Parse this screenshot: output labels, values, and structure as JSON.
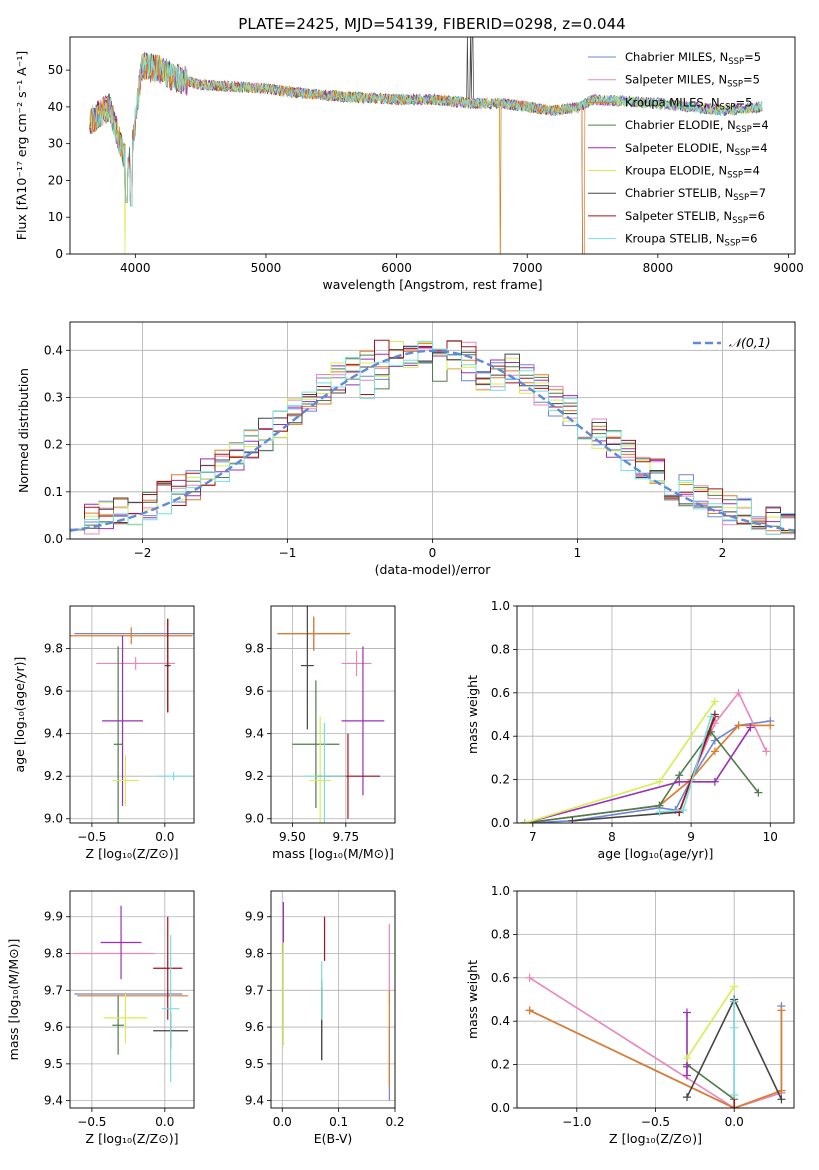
{
  "figure": {
    "title": "PLATE=2425, MJD=54139, FIBERID=0298, z=0.044"
  },
  "models": [
    {
      "name": "Chabrier MILES",
      "nssp": "5",
      "color": "#6f86d6"
    },
    {
      "name": "Salpeter MILES",
      "nssp": "5",
      "color": "#e887bd"
    },
    {
      "name": "Kroupa MILES",
      "nssp": "5",
      "color": "#e07b28"
    },
    {
      "name": "Chabrier ELODIE",
      "nssp": "4",
      "color": "#4f7d4a"
    },
    {
      "name": "Salpeter ELODIE",
      "nssp": "4",
      "color": "#9a2fb8"
    },
    {
      "name": "Kroupa ELODIE",
      "nssp": "4",
      "color": "#d7ee50"
    },
    {
      "name": "Chabrier STELIB",
      "nssp": "7",
      "color": "#444444"
    },
    {
      "name": "Salpeter STELIB",
      "nssp": "6",
      "color": "#a3131b"
    },
    {
      "name": "Kroupa STELIB",
      "nssp": "6",
      "color": "#79dede"
    }
  ],
  "chart_data": [
    {
      "id": "spectrum",
      "type": "line",
      "xlabel": "wavelength [Angstrom, rest frame]",
      "ylabel": "Flux [fλ10⁻¹⁷ erg cm⁻² s⁻¹ A⁻¹]",
      "xlim": [
        3500,
        9050
      ],
      "ylim": [
        0,
        59
      ],
      "xticks": [
        4000,
        5000,
        6000,
        7000,
        8000,
        9000
      ],
      "yticks": [
        0,
        10,
        20,
        30,
        40,
        50
      ],
      "legend": "upper right",
      "grid": false,
      "series_profile": {
        "wavelength": [
          3650,
          3800,
          3930,
          3970,
          4050,
          4200,
          4300,
          4500,
          5000,
          5200,
          5500,
          6000,
          6300,
          6560,
          6800,
          7000,
          7200,
          7400,
          7500,
          8000,
          8500,
          8800
        ],
        "flux": [
          36,
          40,
          25,
          28,
          51,
          50,
          48,
          46,
          45,
          44,
          43,
          42,
          42,
          41,
          41,
          40,
          39,
          40,
          42,
          41,
          39,
          40
        ]
      },
      "salpeter_stelib_drop_at": 7420
    },
    {
      "id": "residuals",
      "type": "histogram",
      "xlabel": "(data-model)/error",
      "ylabel": "Normed distribution",
      "xlim": [
        -2.5,
        2.5
      ],
      "ylim": [
        0,
        0.46
      ],
      "xticks": [
        -2,
        -1,
        0,
        1,
        2
      ],
      "yticks": [
        0.0,
        0.1,
        0.2,
        0.3,
        0.4
      ],
      "grid": true,
      "legend": "upper right",
      "reference_label": "𝒩(0,1)",
      "reference_color": "#5f8ad8",
      "bin_width": 0.1
    },
    {
      "id": "age-vs-Z",
      "type": "errorbar",
      "xlabel": "Z [log₁₀(Z/Z⊙)]",
      "ylabel": "age  [log₁₀(age/yr)]",
      "xlim": [
        -0.65,
        0.2
      ],
      "ylim": [
        8.98,
        10.0
      ],
      "xticks": [
        -0.5,
        0.0
      ],
      "yticks": [
        9.0,
        9.2,
        9.4,
        9.6,
        9.8
      ],
      "grid": true,
      "points": [
        {
          "x": -0.2,
          "xerr": 0.42,
          "y": 9.87,
          "yerr": 0.0
        },
        {
          "x": -0.2,
          "xerr": 0.27,
          "y": 9.73,
          "yerr": 0.03
        },
        {
          "x": -0.23,
          "xerr": 0.42,
          "y": 9.86,
          "yerr": 0.04
        },
        {
          "x": -0.32,
          "xerr": 0.03,
          "y": 9.35,
          "yerr": 0.46
        },
        {
          "x": -0.29,
          "xerr": 0.14,
          "y": 9.46,
          "yerr": 0.4
        },
        {
          "x": -0.27,
          "xerr": 0.09,
          "y": 9.18,
          "yerr": 0.12
        },
        {
          "x": 0.02,
          "xerr": 0.02,
          "y": 9.72,
          "yerr": 0.22
        },
        {
          "x": 0.02,
          "xerr": 0.01,
          "y": 9.72,
          "yerr": 0.22
        },
        {
          "x": 0.06,
          "xerr": 0.12,
          "y": 9.2,
          "yerr": 0.02
        }
      ]
    },
    {
      "id": "age-vs-mass",
      "type": "errorbar",
      "xlabel": "mass [log₁₀(M/M⊙)]",
      "ylabel": "",
      "xlim": [
        9.4,
        9.98
      ],
      "ylim": [
        8.98,
        10.0
      ],
      "xticks": [
        9.5,
        9.75
      ],
      "yticks": [
        9.0,
        9.2,
        9.4,
        9.6,
        9.8
      ],
      "grid": true,
      "points": [
        {
          "x": 9.6,
          "xerr": 0.17,
          "y": 9.87,
          "yerr": 0.08
        },
        {
          "x": 9.8,
          "xerr": 0.07,
          "y": 9.73,
          "yerr": 0.06
        },
        {
          "x": 9.6,
          "xerr": 0.17,
          "y": 9.87,
          "yerr": 0.08
        },
        {
          "x": 9.61,
          "xerr": 0.11,
          "y": 9.35,
          "yerr": 0.3
        },
        {
          "x": 9.83,
          "xerr": 0.1,
          "y": 9.46,
          "yerr": 0.35
        },
        {
          "x": 9.63,
          "xerr": 0.05,
          "y": 9.18,
          "yerr": 0.3
        },
        {
          "x": 9.57,
          "xerr": 0.03,
          "y": 9.72,
          "yerr": 0.3
        },
        {
          "x": 9.76,
          "xerr": 0.15,
          "y": 9.2,
          "yerr": 0.2
        },
        {
          "x": 9.65,
          "xerr": 0.1,
          "y": 9.2,
          "yerr": 0.25
        }
      ]
    },
    {
      "id": "weight-vs-age",
      "type": "line",
      "xlabel": "age  [log₁₀(age/yr)]",
      "ylabel": "mass weight",
      "xlim": [
        6.8,
        10.3
      ],
      "ylim": [
        0,
        1.0
      ],
      "xticks": [
        7,
        8,
        9,
        10
      ],
      "yticks": [
        0.0,
        0.2,
        0.4,
        0.6,
        0.8,
        1.0
      ],
      "grid": true,
      "series": [
        {
          "x": [
            6.9,
            7.5,
            8.6,
            8.8,
            9.0,
            9.3,
            9.6,
            10.0
          ],
          "y": [
            0.0,
            0.01,
            0.07,
            0.06,
            0.2,
            0.38,
            0.45,
            0.47
          ]
        },
        {
          "x": [
            6.9,
            8.6,
            9.0,
            9.3,
            9.6,
            9.95
          ],
          "y": [
            0.0,
            0.08,
            0.2,
            0.46,
            0.6,
            0.33
          ]
        },
        {
          "x": [
            6.9,
            8.6,
            9.0,
            9.3,
            9.6,
            10.0
          ],
          "y": [
            0.0,
            0.08,
            0.2,
            0.33,
            0.45,
            0.45
          ]
        },
        {
          "x": [
            6.9,
            8.6,
            8.85,
            9.25,
            9.85
          ],
          "y": [
            0.0,
            0.08,
            0.22,
            0.42,
            0.14
          ]
        },
        {
          "x": [
            6.9,
            8.85,
            9.3,
            9.75
          ],
          "y": [
            0.0,
            0.19,
            0.19,
            0.44
          ]
        },
        {
          "x": [
            6.9,
            8.6,
            9.3
          ],
          "y": [
            0.0,
            0.19,
            0.56
          ]
        },
        {
          "x": [
            7.5,
            8.85,
            9.3
          ],
          "y": [
            0.01,
            0.05,
            0.5
          ]
        },
        {
          "x": [
            8.85,
            9.3
          ],
          "y": [
            0.05,
            0.49
          ]
        },
        {
          "x": [
            8.6,
            8.9,
            9.25
          ],
          "y": [
            0.05,
            0.06,
            0.49
          ]
        }
      ]
    },
    {
      "id": "mass-vs-Z",
      "type": "errorbar",
      "xlabel": "Z [log₁₀(Z/Z⊙)]",
      "ylabel": "mass [log₁₀(M/M⊙)]",
      "xlim": [
        -0.65,
        0.2
      ],
      "ylim": [
        9.38,
        9.97
      ],
      "xticks": [
        -0.5,
        0.0
      ],
      "yticks": [
        9.4,
        9.5,
        9.6,
        9.7,
        9.8,
        9.9
      ],
      "grid": true,
      "points": [
        {
          "x": -0.25,
          "xerr": 0.37,
          "y": 9.69,
          "yerr": 0.0
        },
        {
          "x": -0.35,
          "xerr": 0.28,
          "y": 9.8,
          "yerr": 0.0
        },
        {
          "x": -0.22,
          "xerr": 0.38,
          "y": 9.685,
          "yerr": 0.0
        },
        {
          "x": -0.32,
          "xerr": 0.04,
          "y": 9.605,
          "yerr": 0.08
        },
        {
          "x": -0.3,
          "xerr": 0.14,
          "y": 9.83,
          "yerr": 0.1
        },
        {
          "x": -0.27,
          "xerr": 0.15,
          "y": 9.625,
          "yerr": 0.07
        },
        {
          "x": 0.04,
          "xerr": 0.12,
          "y": 9.59,
          "yerr": 0.05
        },
        {
          "x": 0.02,
          "xerr": 0.1,
          "y": 9.76,
          "yerr": 0.14
        },
        {
          "x": 0.04,
          "xerr": 0.06,
          "y": 9.65,
          "yerr": 0.2
        }
      ]
    },
    {
      "id": "mass-vs-EBV",
      "type": "errorbar",
      "xlabel": "E(B-V)",
      "ylabel": "",
      "xlim": [
        -0.02,
        0.2
      ],
      "ylim": [
        9.38,
        9.97
      ],
      "xticks": [
        0.0,
        0.1,
        0.2
      ],
      "yticks": [
        9.4,
        9.5,
        9.6,
        9.7,
        9.8,
        9.9
      ],
      "grid": true,
      "points": [
        {
          "x": 0.19,
          "xerr": 0.0,
          "y": 9.5,
          "yerr": 0.1
        },
        {
          "x": 0.19,
          "xerr": 0.0,
          "y": 9.77,
          "yerr": 0.11
        },
        {
          "x": 0.19,
          "xerr": 0.0,
          "y": 9.57,
          "yerr": 0.13
        },
        {
          "x": 0.07,
          "xerr": 0.0,
          "y": 9.62,
          "yerr": 0.11
        },
        {
          "x": 0.002,
          "xerr": 0.0,
          "y": 9.87,
          "yerr": 0.07
        },
        {
          "x": 0.002,
          "xerr": 0.0,
          "y": 9.69,
          "yerr": 0.14
        },
        {
          "x": 0.07,
          "xerr": 0.0,
          "y": 9.61,
          "yerr": 0.1
        },
        {
          "x": 0.075,
          "xerr": 0.0,
          "y": 9.84,
          "yerr": 0.06
        },
        {
          "x": 0.07,
          "xerr": 0.0,
          "y": 9.7,
          "yerr": 0.08
        }
      ]
    },
    {
      "id": "weight-vs-Z",
      "type": "line",
      "xlabel": "Z [log₁₀(Z/Z⊙)]",
      "ylabel": "mass weight",
      "xlim": [
        -1.38,
        0.38
      ],
      "ylim": [
        0,
        1.0
      ],
      "xticks": [
        -1.0,
        -0.5,
        0.0
      ],
      "yticks": [
        0.0,
        0.2,
        0.4,
        0.6,
        0.8,
        1.0
      ],
      "grid": true,
      "series": [
        {
          "x": [
            -1.3,
            0.0,
            0.3,
            0.3
          ],
          "y": [
            0.45,
            0.0,
            0.07,
            0.47
          ]
        },
        {
          "x": [
            -1.3,
            0.0,
            0.3
          ],
          "y": [
            0.6,
            0.0,
            0.07
          ]
        },
        {
          "x": [
            -1.3,
            0.0,
            0.3,
            0.3
          ],
          "y": [
            0.45,
            0.0,
            0.08,
            0.45
          ]
        },
        {
          "x": [
            -0.3,
            0.0
          ],
          "y": [
            0.2,
            0.04
          ]
        },
        {
          "x": [
            -0.3,
            -0.3,
            -0.3
          ],
          "y": [
            0.15,
            0.19,
            0.44
          ]
        },
        {
          "x": [
            -0.3,
            0.0
          ],
          "y": [
            0.23,
            0.56
          ]
        },
        {
          "x": [
            -0.3,
            0.0,
            0.3
          ],
          "y": [
            0.05,
            0.5,
            0.04
          ]
        },
        {
          "x": [
            0.0,
            0.0
          ],
          "y": [
            0.0,
            0.49
          ]
        },
        {
          "x": [
            0.0,
            0.0,
            0.0
          ],
          "y": [
            0.06,
            0.37,
            0.49
          ]
        }
      ]
    }
  ]
}
